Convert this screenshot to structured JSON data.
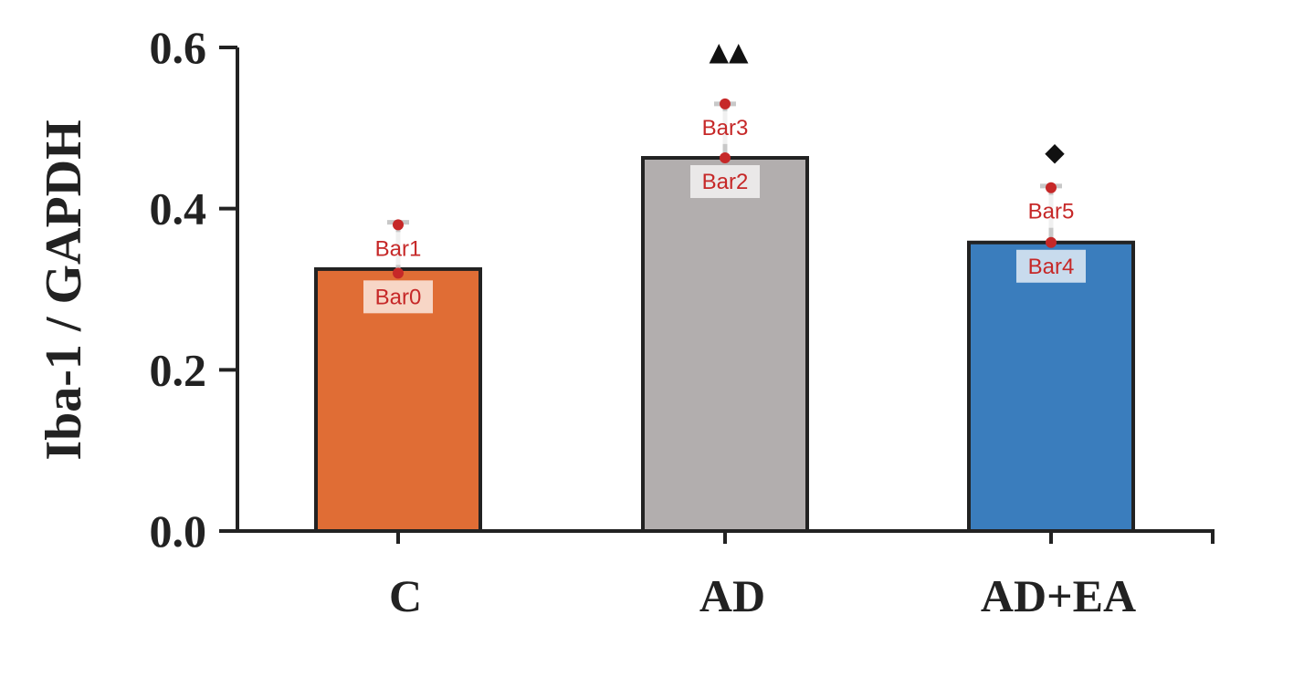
{
  "chart_data": {
    "type": "bar",
    "ylabel": "Iba-1 / GAPDH",
    "xlabel": "",
    "categories": [
      "C",
      "AD",
      "AD+EA"
    ],
    "values": [
      0.325,
      0.463,
      0.358
    ],
    "error_upper": [
      0.383,
      0.53,
      0.428
    ],
    "colors": [
      "#e06d35",
      "#b2aeae",
      "#3a7dbd"
    ],
    "ylim": [
      0,
      0.6
    ],
    "yticks": [
      "0.0",
      "0.2",
      "0.4",
      "0.6"
    ],
    "significance": [
      "",
      "▲▲",
      "◆"
    ],
    "point_labels": [
      {
        "name": "Bar0",
        "y": 0.32,
        "category": 0
      },
      {
        "name": "Bar1",
        "y": 0.38,
        "category": 0
      },
      {
        "name": "Bar2",
        "y": 0.463,
        "category": 1
      },
      {
        "name": "Bar3",
        "y": 0.53,
        "category": 1
      },
      {
        "name": "Bar4",
        "y": 0.358,
        "category": 2
      },
      {
        "name": "Bar5",
        "y": 0.426,
        "category": 2
      }
    ],
    "grid": false,
    "legend": "none"
  }
}
